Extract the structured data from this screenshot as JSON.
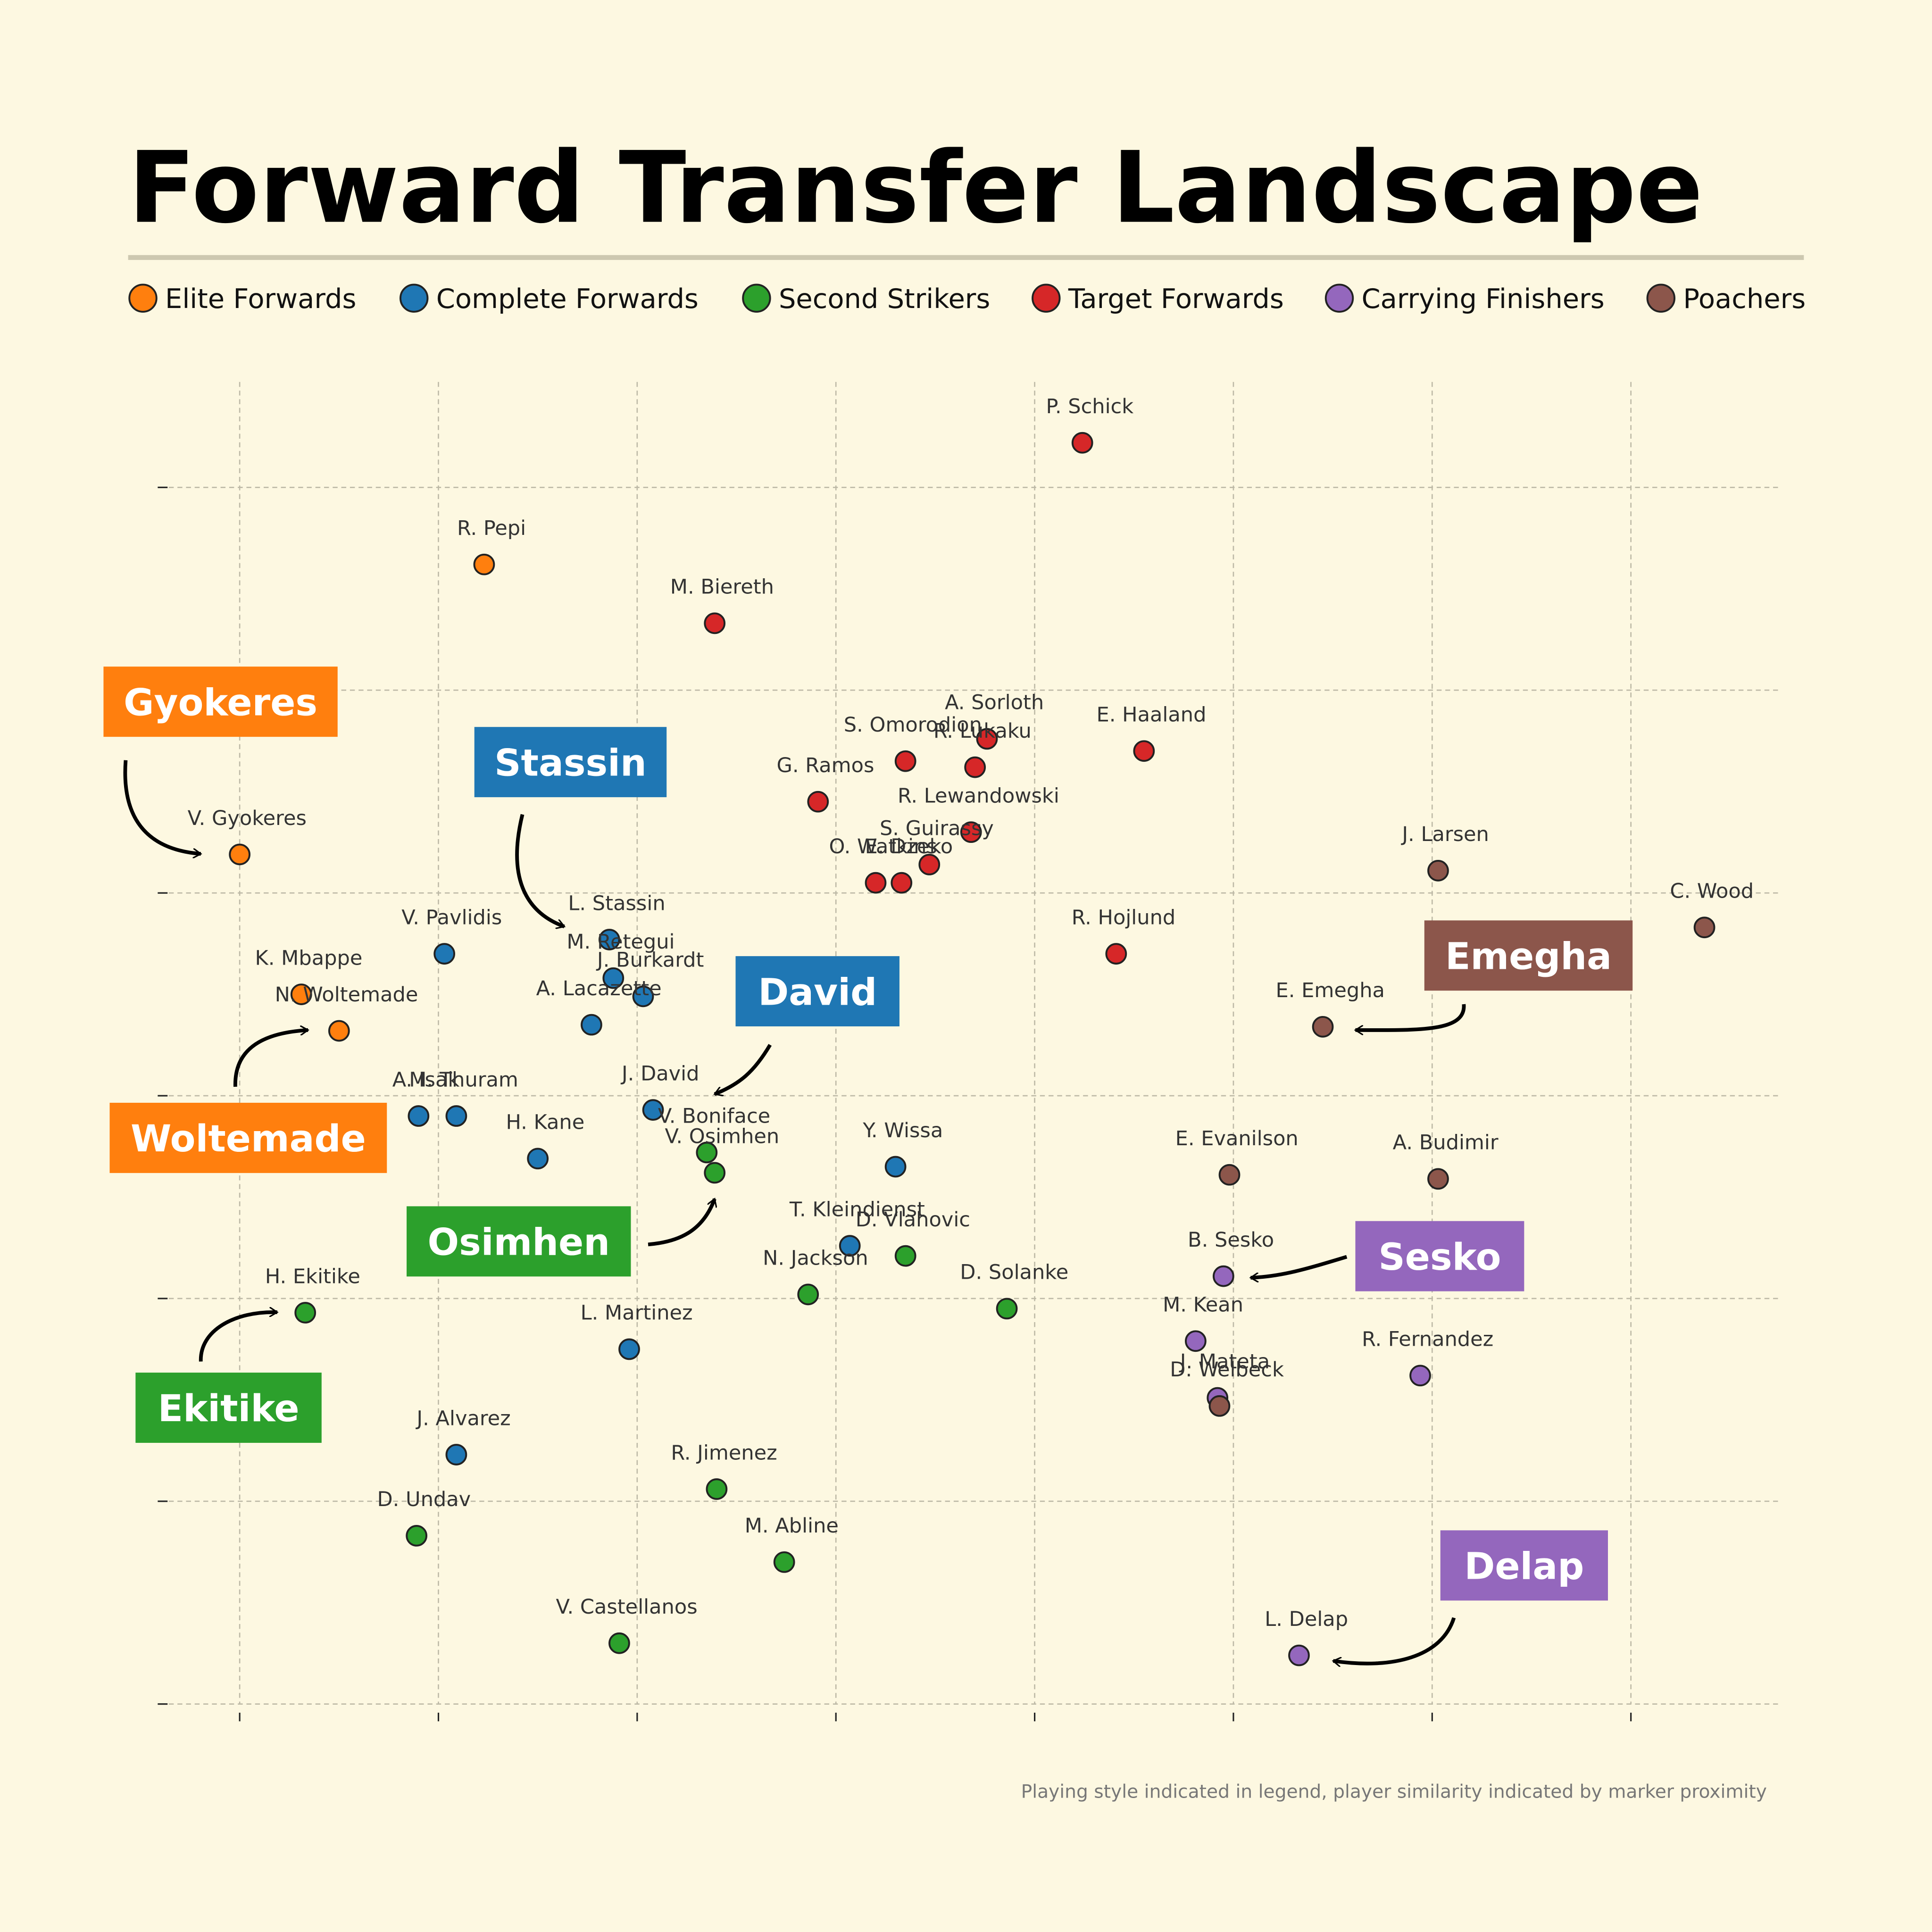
{
  "chart_data": {
    "type": "scatter",
    "title": "Forward Transfer Landscape",
    "footnote": "Playing style indicated in legend, player similarity indicated by marker proximity",
    "xlim": [
      -0.4,
      7.74
    ],
    "ylim": [
      0,
      6.52
    ],
    "xticks": [
      0,
      1,
      2,
      3,
      4,
      5,
      6,
      7
    ],
    "yticks": [
      0,
      1,
      2,
      3,
      4,
      5,
      6
    ],
    "grid": true,
    "legend": "top",
    "series": [
      {
        "name": "Elite Forwards",
        "color": "#ff7f0e",
        "labels": [
          "R. Pepi",
          "V. Gyokeres",
          "K. Mbappe",
          "N. Woltemade"
        ],
        "x": [
          1.23,
          0.0,
          0.31,
          0.5
        ],
        "y": [
          5.62,
          4.19,
          3.5,
          3.32
        ]
      },
      {
        "name": "Complete Forwards",
        "color": "#1f77b4",
        "labels": [
          "V. Pavlidis",
          "L. Stassin",
          "M. Retegui",
          "J. Burkardt",
          "A. Lacazette",
          "A. Isak",
          "M. Thuram",
          "H. Kane",
          "J. David",
          "T. Kleindienst",
          "Y. Wissa",
          "L. Martinez",
          "J. Alvarez"
        ],
        "x": [
          1.03,
          1.86,
          1.88,
          2.03,
          1.77,
          0.9,
          1.09,
          1.5,
          2.08,
          3.07,
          3.3,
          1.96,
          1.09
        ],
        "y": [
          3.7,
          3.77,
          3.58,
          3.49,
          3.35,
          2.9,
          2.9,
          2.69,
          2.93,
          2.26,
          2.65,
          1.75,
          1.23
        ]
      },
      {
        "name": "Second Strikers",
        "color": "#2ca02c",
        "labels": [
          "V. Boniface",
          "V. Osimhen",
          "D. Vlahovic",
          "N. Jackson",
          "D. Solanke",
          "H. Ekitike",
          "R. Jimenez",
          "D. Undav",
          "M. Abline",
          "V. Castellanos"
        ],
        "x": [
          2.35,
          2.39,
          3.35,
          2.86,
          3.86,
          0.33,
          2.4,
          0.89,
          2.74,
          1.91
        ],
        "y": [
          2.72,
          2.62,
          2.21,
          2.02,
          1.95,
          1.93,
          1.06,
          0.83,
          0.7,
          0.3
        ]
      },
      {
        "name": "Target Forwards",
        "color": "#d62728",
        "labels": [
          "P. Schick",
          "M. Biereth",
          "A. Sorloth",
          "E. Haaland",
          "S. Omorodion",
          "R. Lukaku",
          "G. Ramos",
          "R. Lewandowski",
          "S. Guirassy",
          "O. Watkins",
          "E. Dzeko",
          "R. Hojlund"
        ],
        "x": [
          4.24,
          2.39,
          3.76,
          4.55,
          3.35,
          3.7,
          2.91,
          3.68,
          3.47,
          3.2,
          3.33,
          4.41
        ],
        "y": [
          6.22,
          5.33,
          4.76,
          4.7,
          4.65,
          4.62,
          4.45,
          4.3,
          4.14,
          4.05,
          4.05,
          3.7
        ]
      },
      {
        "name": "Carrying Finishers",
        "color": "#9467bd",
        "labels": [
          "B. Sesko",
          "M. Kean",
          "J. Mateta",
          "R. Fernandez",
          "L. Delap"
        ],
        "x": [
          4.95,
          4.81,
          4.92,
          5.94,
          5.33
        ],
        "y": [
          2.11,
          1.79,
          1.51,
          1.62,
          0.24
        ]
      },
      {
        "name": "Poachers",
        "color": "#8c564b",
        "labels": [
          "J. Larsen",
          "C. Wood",
          "E. Emegha",
          "E. Evanilson",
          "A. Budimir",
          "D. Welbeck"
        ],
        "x": [
          6.03,
          7.37,
          5.45,
          4.98,
          6.03,
          4.93
        ],
        "y": [
          4.11,
          3.83,
          3.34,
          2.61,
          2.59,
          1.47
        ]
      }
    ],
    "annotations": [
      {
        "text": "Gyokeres",
        "color": "#ff7f0e"
      },
      {
        "text": "Stassin",
        "color": "#1f77b4"
      },
      {
        "text": "David",
        "color": "#1f77b4"
      },
      {
        "text": "Woltemade",
        "color": "#ff7f0e"
      },
      {
        "text": "Osimhen",
        "color": "#2ca02c"
      },
      {
        "text": "Ekitike",
        "color": "#2ca02c"
      },
      {
        "text": "Emegha",
        "color": "#8c564b"
      },
      {
        "text": "Sesko",
        "color": "#9467bd"
      },
      {
        "text": "Delap",
        "color": "#9467bd"
      }
    ]
  }
}
